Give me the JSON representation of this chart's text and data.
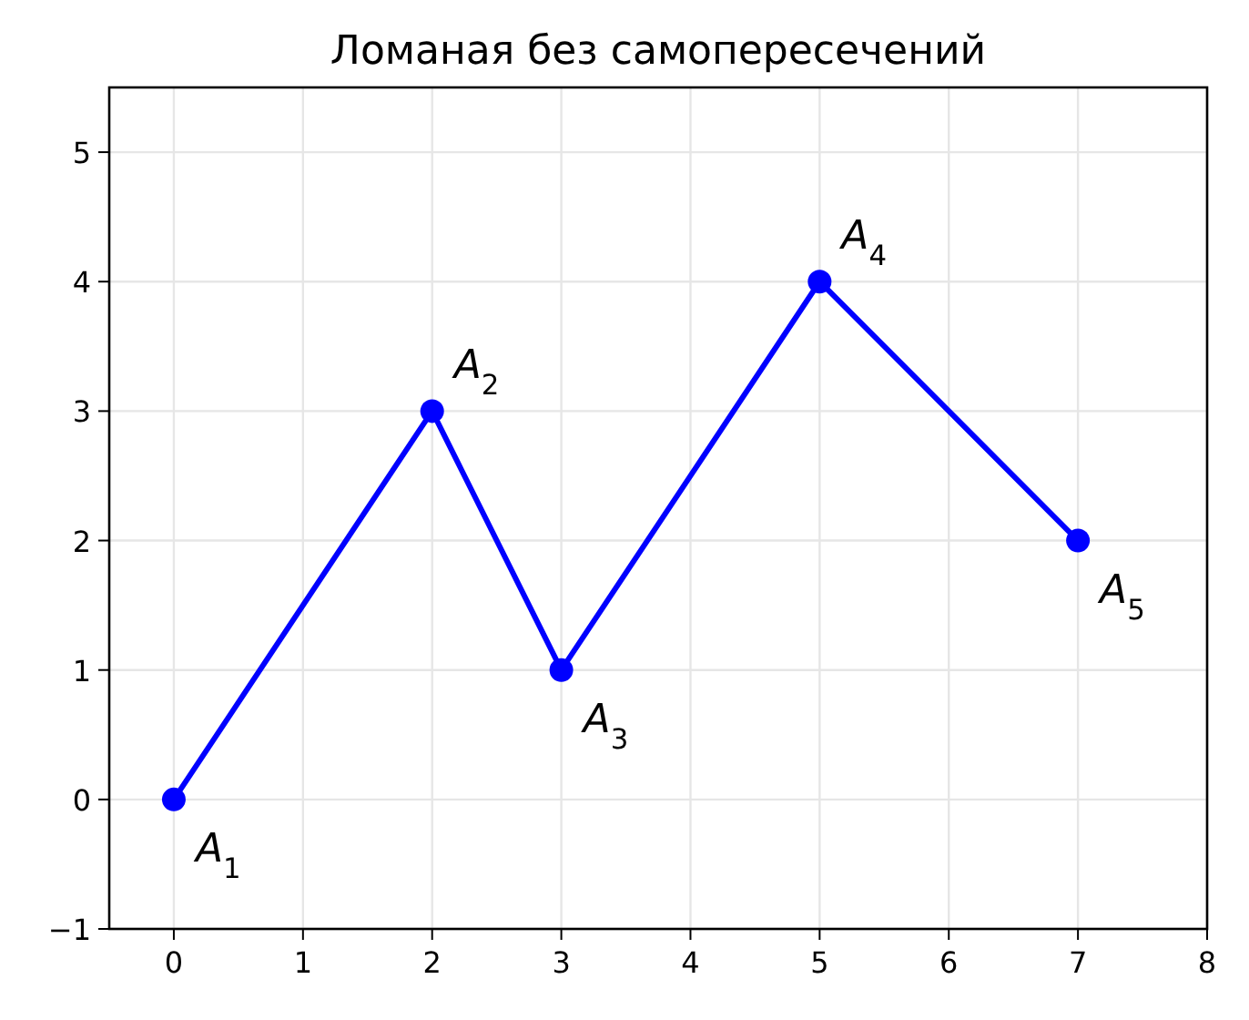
{
  "chart_data": {
    "type": "line",
    "title": "Ломаная без самопересечений",
    "x": [
      0,
      2,
      3,
      5,
      7
    ],
    "series": [
      {
        "color": "#0000ff",
        "values": [
          0,
          3,
          1,
          4,
          2
        ]
      }
    ],
    "xlim": [
      -0.5,
      8
    ],
    "xticks": [
      0,
      1,
      2,
      3,
      4,
      5,
      6,
      7,
      8
    ],
    "ylim": [
      -1,
      5.5
    ],
    "yticks": [
      -1,
      0,
      1,
      2,
      3,
      4,
      5
    ],
    "grid": true,
    "marker": "circle",
    "line_style": "solid",
    "annotations": [
      {
        "text": "A$_{1}$",
        "x": 0,
        "y": 0
      },
      {
        "text": "A$_{2}$",
        "x": 2,
        "y": 3
      },
      {
        "text": "A$_{3}$",
        "x": 3,
        "y": 1
      },
      {
        "text": "A$_{4}$",
        "x": 5,
        "y": 4
      },
      {
        "text": "A$_{5}$",
        "x": 7,
        "y": 2
      }
    ]
  }
}
